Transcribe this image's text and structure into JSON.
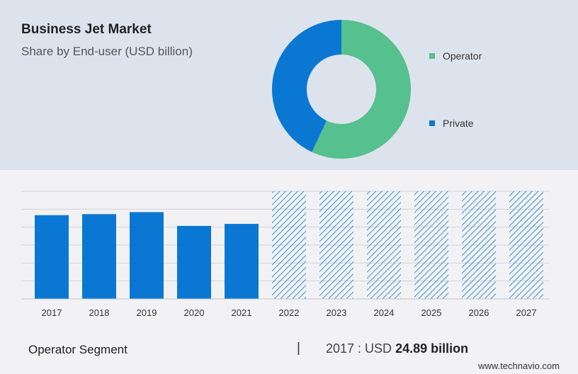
{
  "header": {
    "title": "Business Jet Market",
    "subtitle": "Share by End-user (USD billion)"
  },
  "colors": {
    "operator": "#56c08f",
    "private": "#0a78d2",
    "bar": "#0a78d2",
    "hatch": "#0a78d2"
  },
  "chart_data": [
    {
      "type": "pie",
      "variant": "donut",
      "legend_position": "right",
      "series": [
        {
          "name": "Operator",
          "value": 57
        },
        {
          "name": "Private",
          "value": 43
        }
      ]
    },
    {
      "type": "bar",
      "categories": [
        "2017",
        "2018",
        "2019",
        "2020",
        "2021",
        "2022",
        "2023",
        "2024",
        "2025",
        "2026",
        "2027"
      ],
      "values": [
        24.89,
        25.2,
        25.8,
        21.7,
        22.3,
        null,
        null,
        null,
        null,
        null,
        null
      ],
      "forecast_categories": [
        "2022",
        "2023",
        "2024",
        "2025",
        "2026",
        "2027"
      ],
      "forecast_style": "hatched",
      "ylim": [
        0,
        32
      ],
      "grid": true
    }
  ],
  "footer": {
    "segment_label": "Operator Segment",
    "separator": "|",
    "year": "2017",
    "currency_prefix": " : USD ",
    "value_text": "24.89 billion"
  },
  "brand": "www.technavio.com"
}
